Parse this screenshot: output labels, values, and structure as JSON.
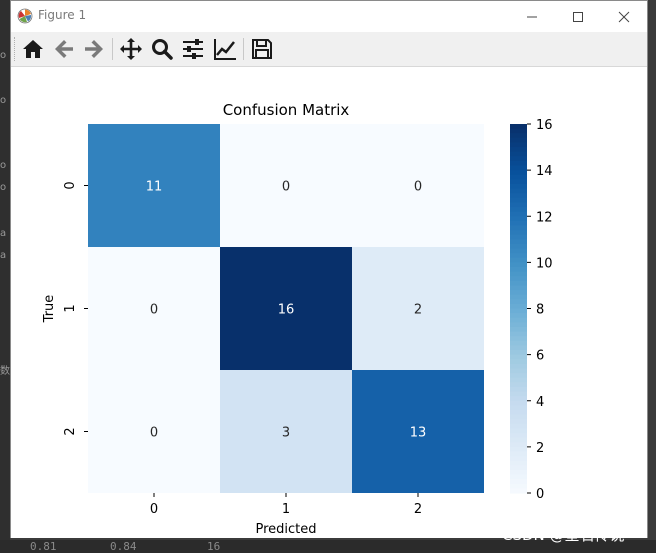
{
  "window": {
    "title": "Figure 1"
  },
  "toolbar": {
    "buttons": [
      {
        "name": "home-button",
        "icon": "home-icon"
      },
      {
        "name": "back-button",
        "icon": "arrow-left-icon"
      },
      {
        "name": "forward-button",
        "icon": "arrow-right-icon"
      },
      {
        "name": "pan-button",
        "icon": "move-icon"
      },
      {
        "name": "zoom-button",
        "icon": "search-icon"
      },
      {
        "name": "configure-subplots-button",
        "icon": "sliders-icon"
      },
      {
        "name": "edit-axes-button",
        "icon": "line-chart-icon"
      },
      {
        "name": "save-button",
        "icon": "save-icon"
      }
    ]
  },
  "chart_data": {
    "type": "heatmap",
    "title": "Confusion Matrix",
    "xlabel": "Predicted",
    "ylabel": "True",
    "x_categories": [
      "0",
      "1",
      "2"
    ],
    "y_categories": [
      "0",
      "1",
      "2"
    ],
    "matrix": [
      [
        11,
        0,
        0
      ],
      [
        0,
        16,
        2
      ],
      [
        0,
        3,
        13
      ]
    ],
    "colormap": "Blues",
    "colorbar": {
      "min": 0,
      "max": 16,
      "ticks": [
        0,
        2,
        4,
        6,
        8,
        10,
        12,
        14,
        16
      ]
    },
    "annotated": true,
    "colors": {
      "low": "#f7fbff",
      "high": "#08306b"
    }
  },
  "desktop": {
    "left_glyphs": [
      "o",
      "o",
      "o",
      "o",
      "a",
      "a",
      "数"
    ],
    "bottom_values": [
      "0.81",
      "0.84",
      "16"
    ],
    "watermark": "CSDN @星石传说"
  }
}
